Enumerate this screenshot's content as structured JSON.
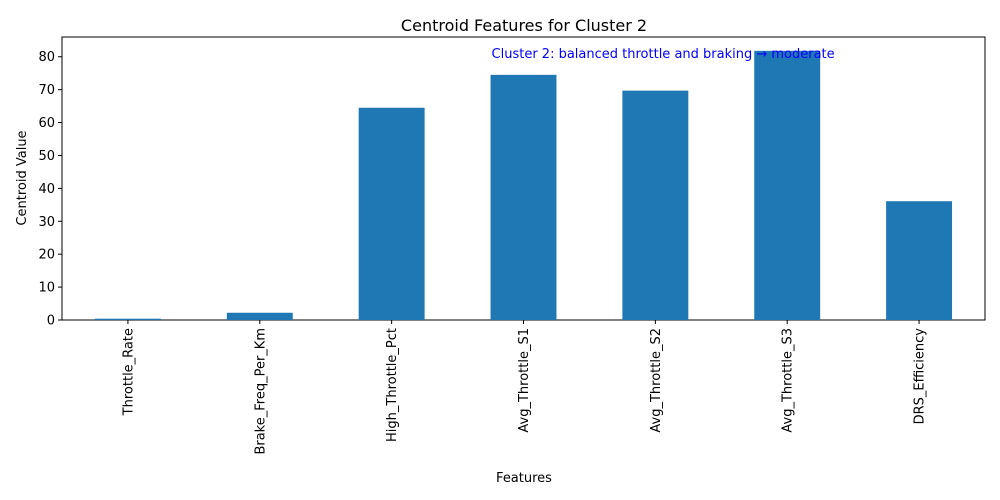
{
  "chart_data": {
    "type": "bar",
    "title": "Centroid Features for Cluster 2",
    "xlabel": "Features",
    "ylabel": "Centroid Value",
    "categories": [
      "Throttle_Rate",
      "Brake_Freq_Per_Km",
      "High_Throttle_Pct",
      "Avg_Throttle_S1",
      "Avg_Throttle_S2",
      "Avg_Throttle_S3",
      "DRS_Efficiency"
    ],
    "values": [
      0.4,
      2.2,
      64.5,
      74.5,
      69.7,
      81.8,
      36.1
    ],
    "ylim": [
      0,
      86
    ],
    "yticks": [
      "0",
      "10",
      "20",
      "30",
      "40",
      "50",
      "60",
      "70",
      "80"
    ],
    "bar_color": "#1f77b4",
    "grid": false,
    "annotation": {
      "text": "Cluster 2: balanced throttle and braking → moderate",
      "color": "#0000ff",
      "x_category": "Avg_Throttle_S1",
      "y": 77.5
    }
  }
}
